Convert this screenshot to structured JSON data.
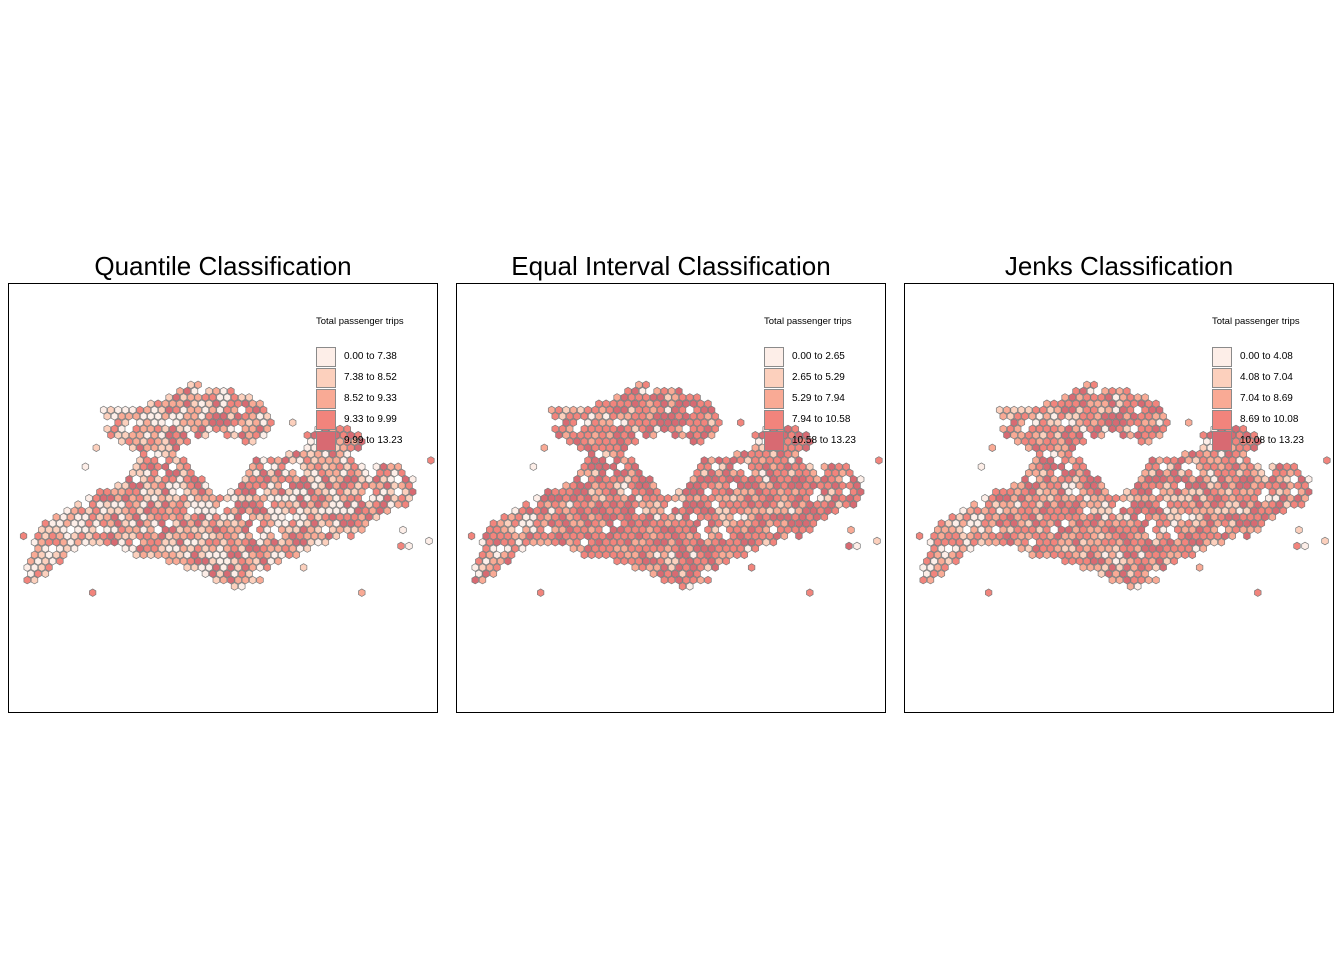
{
  "panels": [
    {
      "title": "Quantile Classification",
      "legend_title": "Total passenger trips",
      "classes": [
        {
          "label": "0.00 to 7.38",
          "color": "#fdeee8"
        },
        {
          "label": "7.38 to 8.52",
          "color": "#fcd0bd"
        },
        {
          "label": "8.52 to 9.33",
          "color": "#f9aa95"
        },
        {
          "label": "9.33 to 9.99",
          "color": "#f2847c"
        },
        {
          "label": "9.99 to 13.23",
          "color": "#d86a72"
        }
      ]
    },
    {
      "title": "Equal Interval Classification",
      "legend_title": "Total passenger trips",
      "classes": [
        {
          "label": "0.00 to 2.65",
          "color": "#fdeee8"
        },
        {
          "label": "2.65 to 5.29",
          "color": "#fcd0bd"
        },
        {
          "label": "5.29 to 7.94",
          "color": "#f9aa95"
        },
        {
          "label": "7.94 to 10.58",
          "color": "#f2847c"
        },
        {
          "label": "10.58 to 13.23",
          "color": "#d86a72"
        }
      ]
    },
    {
      "title": "Jenks Classification",
      "legend_title": "Total passenger trips",
      "classes": [
        {
          "label": "0.00 to 4.08",
          "color": "#fdeee8"
        },
        {
          "label": "4.08 to 7.04",
          "color": "#fcd0bd"
        },
        {
          "label": "7.04 to 8.69",
          "color": "#f9aa95"
        },
        {
          "label": "8.69 to 10.08",
          "color": "#f2847c"
        },
        {
          "label": "10.08 to 13.23",
          "color": "#d86a72"
        }
      ]
    }
  ],
  "styles": {
    "hex_outline": "#7a7a7a",
    "frame": "#000000"
  }
}
